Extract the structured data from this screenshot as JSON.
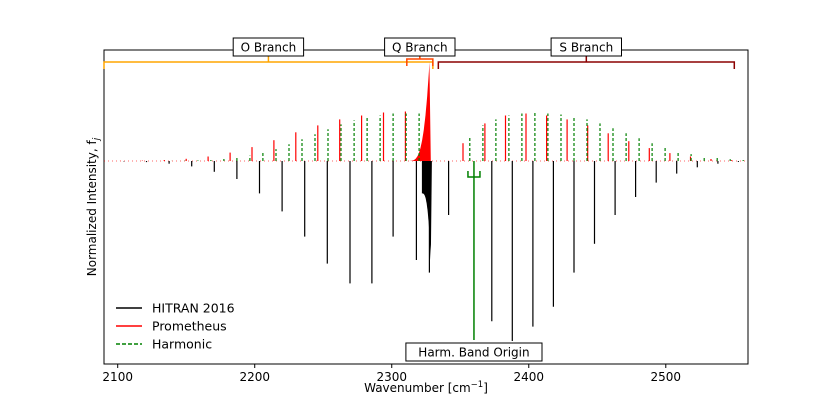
{
  "chart_data": {
    "type": "stick-spectrum",
    "xlabel": "Wavenumber [cm",
    "xlabel_sup": "−1",
    "xlabel_end": "]",
    "ylabel": "Normalized Intensity, f",
    "ylabel_sub": "j",
    "xlim": [
      2090,
      2560
    ],
    "ylim": [
      -1.0,
      0.55
    ],
    "xticks": [
      2100,
      2200,
      2300,
      2400,
      2500
    ],
    "band_origin": 2360,
    "series": [
      {
        "name": "HITRAN 2016",
        "color": "#000000",
        "style": "solid",
        "direction": "down",
        "lines": [
          [
            2327.5,
            0.62
          ],
          [
            2318.0,
            0.55
          ],
          [
            2301.0,
            0.42
          ],
          [
            2285.5,
            0.68
          ],
          [
            2269.5,
            0.68
          ],
          [
            2253.0,
            0.57
          ],
          [
            2236.5,
            0.42
          ],
          [
            2220.0,
            0.28
          ],
          [
            2203.5,
            0.18
          ],
          [
            2187.0,
            0.1
          ],
          [
            2170.5,
            0.06
          ],
          [
            2154.0,
            0.03
          ],
          [
            2137.5,
            0.015
          ],
          [
            2121.0,
            0.006
          ],
          [
            2104.5,
            0.002
          ],
          [
            2341.5,
            0.3
          ],
          [
            2373.0,
            0.89
          ],
          [
            2388.0,
            1.0
          ],
          [
            2403.0,
            0.92
          ],
          [
            2418.0,
            0.81
          ],
          [
            2433.0,
            0.62
          ],
          [
            2448.0,
            0.46
          ],
          [
            2463.0,
            0.3
          ],
          [
            2478.0,
            0.2
          ],
          [
            2493.0,
            0.12
          ],
          [
            2508.0,
            0.07
          ],
          [
            2523.0,
            0.035
          ],
          [
            2538.0,
            0.015
          ],
          [
            2553.0,
            0.005
          ]
        ]
      },
      {
        "name": "Prometheus",
        "color": "#ff0000",
        "style": "solid",
        "direction": "up",
        "lines": [
          [
            2326.0,
            0.52
          ],
          [
            2310.0,
            0.5
          ],
          [
            2294.0,
            0.49
          ],
          [
            2278.0,
            0.46
          ],
          [
            2262.0,
            0.42
          ],
          [
            2246.0,
            0.36
          ],
          [
            2230.0,
            0.29
          ],
          [
            2214.0,
            0.21
          ],
          [
            2198.0,
            0.14
          ],
          [
            2182.0,
            0.085
          ],
          [
            2166.0,
            0.045
          ],
          [
            2150.0,
            0.022
          ],
          [
            2134.0,
            0.01
          ],
          [
            2118.0,
            0.004
          ],
          [
            2102.0,
            0.001
          ],
          [
            2352.0,
            0.18
          ],
          [
            2368.0,
            0.38
          ],
          [
            2383.0,
            0.46
          ],
          [
            2398.0,
            0.48
          ],
          [
            2413.0,
            0.46
          ],
          [
            2428.0,
            0.42
          ],
          [
            2443.0,
            0.36
          ],
          [
            2458.0,
            0.28
          ],
          [
            2473.0,
            0.2
          ],
          [
            2488.0,
            0.13
          ],
          [
            2503.0,
            0.08
          ],
          [
            2518.0,
            0.045
          ],
          [
            2533.0,
            0.02
          ],
          [
            2548.0,
            0.008
          ]
        ]
      },
      {
        "name": "Harmonic",
        "color": "#008000",
        "style": "dashed",
        "direction": "up",
        "lines": [
          [
            2320.0,
            0.48
          ],
          [
            2310.5,
            0.48
          ],
          [
            2301.0,
            0.48
          ],
          [
            2291.5,
            0.46
          ],
          [
            2282.0,
            0.44
          ],
          [
            2272.5,
            0.41
          ],
          [
            2263.0,
            0.37
          ],
          [
            2253.5,
            0.32
          ],
          [
            2244.0,
            0.27
          ],
          [
            2234.5,
            0.22
          ],
          [
            2225.0,
            0.17
          ],
          [
            2215.5,
            0.12
          ],
          [
            2206.0,
            0.085
          ],
          [
            2196.5,
            0.055
          ],
          [
            2187.0,
            0.035
          ],
          [
            2177.5,
            0.02
          ],
          [
            2168.0,
            0.01
          ],
          [
            2158.5,
            0.006
          ],
          [
            2149.0,
            0.003
          ],
          [
            2139.5,
            0.001
          ],
          [
            2357.0,
            0.25
          ],
          [
            2366.5,
            0.36
          ],
          [
            2376.0,
            0.42
          ],
          [
            2385.5,
            0.46
          ],
          [
            2395.0,
            0.48
          ],
          [
            2404.5,
            0.49
          ],
          [
            2414.0,
            0.48
          ],
          [
            2423.5,
            0.47
          ],
          [
            2433.0,
            0.45
          ],
          [
            2442.5,
            0.42
          ],
          [
            2452.0,
            0.38
          ],
          [
            2461.5,
            0.33
          ],
          [
            2471.0,
            0.28
          ],
          [
            2480.5,
            0.23
          ],
          [
            2490.0,
            0.18
          ],
          [
            2499.5,
            0.14
          ],
          [
            2509.0,
            0.1
          ],
          [
            2518.5,
            0.07
          ],
          [
            2528.0,
            0.045
          ],
          [
            2537.5,
            0.03
          ],
          [
            2547.0,
            0.018
          ],
          [
            2556.5,
            0.01
          ]
        ]
      }
    ],
    "q_branch_hitran_peak": 2328.5,
    "q_branch_prometheus_peak": 2327.5,
    "annotations": {
      "o_branch": {
        "label": "O Branch",
        "x_start": 2090,
        "x_end": 2330
      },
      "q_branch": {
        "label": "Q Branch",
        "x_start": 2311,
        "x_end": 2330
      },
      "s_branch": {
        "label": "S Branch",
        "x_start": 2334,
        "x_end": 2550
      },
      "band_origin": {
        "label": "Harm. Band Origin"
      }
    },
    "legend_position": "lower-left"
  }
}
